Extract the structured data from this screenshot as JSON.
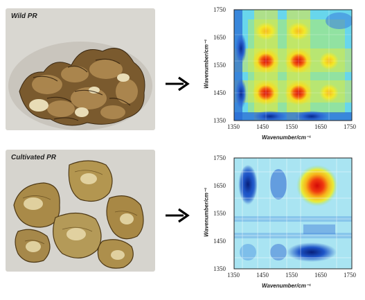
{
  "panels": [
    {
      "photo_label": "Wild PR",
      "chart": {
        "y_ticks": [
          "1750",
          "1650",
          "1550",
          "1450",
          "1350"
        ],
        "x_ticks": [
          "1350",
          "1450",
          "1550",
          "1650",
          "1750"
        ],
        "ylabel": "Wavenumber/cm⁻¹",
        "xlabel": "Wavenumber/cm⁻¹"
      }
    },
    {
      "photo_label": "Cultivated PR",
      "chart": {
        "y_ticks": [
          "1750",
          "1650",
          "1550",
          "1450",
          "1350"
        ],
        "x_ticks": [
          "1350",
          "1450",
          "1550",
          "1650",
          "1750"
        ],
        "ylabel": "Wavenumber/cm⁻¹",
        "xlabel": "Wavenumber/cm⁻¹"
      }
    }
  ],
  "colors": {
    "red": "#e01010",
    "yellow": "#f2e020",
    "green": "#9ee26a",
    "cyan": "#5fd8ee",
    "blue": "#1f57c8",
    "navy": "#0a2a8a"
  },
  "chart_data": [
    {
      "type": "heatmap",
      "title": "",
      "xlabel": "Wavenumber/cm⁻¹",
      "ylabel": "Wavenumber/cm⁻¹",
      "xlim": [
        1350,
        1750
      ],
      "ylim": [
        1350,
        1750
      ],
      "peaks": [
        {
          "x": 1460,
          "y": 1460,
          "level": "high"
        },
        {
          "x": 1460,
          "y": 1570,
          "level": "high"
        },
        {
          "x": 1570,
          "y": 1460,
          "level": "high"
        },
        {
          "x": 1570,
          "y": 1570,
          "level": "high"
        },
        {
          "x": 1460,
          "y": 1640,
          "level": "medium"
        },
        {
          "x": 1570,
          "y": 1640,
          "level": "medium"
        },
        {
          "x": 1620,
          "y": 1570,
          "level": "medium"
        },
        {
          "x": 1620,
          "y": 1460,
          "level": "medium"
        }
      ],
      "troughs": [
        {
          "x": 1400,
          "y": 1550,
          "level": "low"
        },
        {
          "x": 1550,
          "y": 1400,
          "level": "low"
        }
      ]
    },
    {
      "type": "heatmap",
      "title": "",
      "xlabel": "Wavenumber/cm⁻¹",
      "ylabel": "Wavenumber/cm⁻¹",
      "xlim": [
        1350,
        1750
      ],
      "ylim": [
        1350,
        1750
      ],
      "peaks": [
        {
          "x": 1650,
          "y": 1650,
          "level": "high"
        }
      ],
      "troughs": [
        {
          "x": 1410,
          "y": 1650,
          "level": "low"
        },
        {
          "x": 1650,
          "y": 1410,
          "level": "low"
        },
        {
          "x": 1510,
          "y": 1650,
          "level": "low"
        }
      ]
    }
  ]
}
